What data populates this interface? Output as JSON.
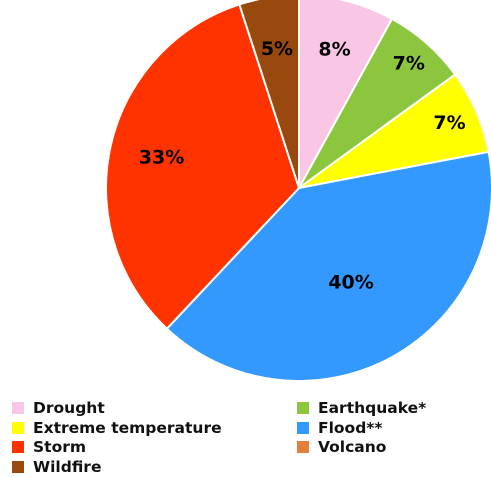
{
  "chart_data": {
    "type": "pie",
    "title": "",
    "start_angle_deg": 0,
    "direction": "clockwise",
    "slices": [
      {
        "name": "Drought",
        "value": 8,
        "label": "8%",
        "color": "#F9C6E6"
      },
      {
        "name": "Earthquake*",
        "value": 7,
        "label": "7%",
        "color": "#8CC63F"
      },
      {
        "name": "Extreme temperature",
        "value": 7,
        "label": "7%",
        "color": "#FFFF00"
      },
      {
        "name": "Flood**",
        "value": 40,
        "label": "40%",
        "color": "#3399FF"
      },
      {
        "name": "Volcano",
        "value": 0,
        "label": "",
        "color": "#E0803C"
      },
      {
        "name": "Storm",
        "value": 33,
        "label": "33%",
        "color": "#FF3300"
      },
      {
        "name": "Wildfire",
        "value": 5,
        "label": "5%",
        "color": "#99490E"
      }
    ],
    "legend": {
      "placement": "bottom",
      "columns": 2,
      "order": [
        "Drought",
        "Earthquake*",
        "Extreme temperature",
        "Flood**",
        "Storm",
        "Volcano",
        "Wildfire"
      ]
    }
  }
}
